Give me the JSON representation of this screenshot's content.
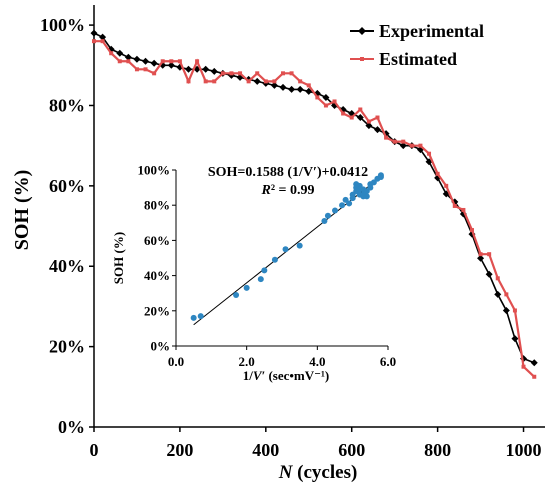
{
  "chart_data": [
    {
      "type": "line",
      "xlabel_italic": "N",
      "xlabel_rest": " (cycles)",
      "ylabel": "SOH (%)",
      "xlim": [
        0,
        1050
      ],
      "ylim": [
        0,
        105
      ],
      "x_ticks": [
        0,
        200,
        400,
        600,
        800,
        1000
      ],
      "x_tick_labels": [
        "0",
        "200",
        "400",
        "600",
        "800",
        "1000"
      ],
      "y_ticks": [
        0,
        20,
        40,
        60,
        80,
        100
      ],
      "y_tick_labels": [
        "0%",
        "20%",
        "40%",
        "60%",
        "80%",
        "100%"
      ],
      "legend_position": "top-right",
      "series": [
        {
          "name": "Experimental",
          "color": "#000000",
          "marker": "diamond",
          "x": [
            0,
            20,
            40,
            60,
            80,
            100,
            120,
            140,
            160,
            180,
            200,
            220,
            240,
            260,
            280,
            300,
            320,
            340,
            360,
            380,
            400,
            420,
            440,
            460,
            480,
            500,
            520,
            540,
            560,
            580,
            600,
            620,
            640,
            660,
            680,
            700,
            720,
            740,
            760,
            780,
            800,
            820,
            840,
            860,
            880,
            900,
            920,
            940,
            960,
            980,
            1000,
            1025
          ],
          "y": [
            98,
            97,
            94,
            93,
            92,
            91.5,
            91,
            90.5,
            90,
            90,
            89.5,
            89,
            89,
            89,
            88.5,
            88,
            87.5,
            87,
            86.5,
            86,
            85.5,
            85,
            84.5,
            84,
            84,
            83.5,
            83,
            82,
            80,
            79,
            78,
            77,
            75,
            74,
            73,
            71,
            70,
            70,
            69,
            66,
            62,
            58,
            56,
            53,
            48,
            42,
            38,
            33,
            29,
            22,
            17,
            16
          ]
        },
        {
          "name": "Estimated",
          "color": "#e05050",
          "marker": "square",
          "x": [
            0,
            20,
            40,
            60,
            80,
            100,
            120,
            140,
            160,
            180,
            200,
            220,
            240,
            260,
            280,
            300,
            320,
            340,
            360,
            380,
            400,
            420,
            440,
            460,
            480,
            500,
            520,
            540,
            560,
            580,
            600,
            620,
            640,
            660,
            680,
            700,
            720,
            740,
            760,
            780,
            800,
            820,
            840,
            860,
            880,
            900,
            920,
            940,
            960,
            980,
            1000,
            1025
          ],
          "y": [
            96,
            96,
            93,
            91,
            91,
            89,
            89,
            88,
            91,
            91,
            91,
            86,
            91,
            86,
            86,
            88,
            88,
            88,
            86,
            88,
            86,
            86,
            88,
            88,
            86,
            85,
            82,
            80,
            81,
            78,
            77,
            79,
            76,
            77,
            72,
            71,
            71,
            70,
            70,
            68,
            63,
            60,
            55,
            54,
            49,
            43,
            43,
            37,
            33,
            29,
            15,
            12.5
          ]
        }
      ]
    },
    {
      "type": "scatter",
      "title": "SOH=0.1588 (1/V′)+0.0412",
      "annotation_italic": "R",
      "annotation_rest": "² = 0.99",
      "xlabel_lead": "1/",
      "xlabel_italic": "V′",
      "xlabel_rest": " (sec•mV⁻¹)",
      "ylabel": "SOH (%)",
      "xlim": [
        0,
        6
      ],
      "ylim": [
        0,
        100
      ],
      "x_ticks": [
        0,
        2,
        4,
        6
      ],
      "x_tick_labels": [
        "0.0",
        "2.0",
        "4.0",
        "6.0"
      ],
      "y_ticks": [
        0,
        20,
        40,
        60,
        80,
        100
      ],
      "y_tick_labels": [
        "0%",
        "20%",
        "40%",
        "60%",
        "80%",
        "100%"
      ],
      "point_color": "#2e86c1",
      "trendline_color": "#000000",
      "trendline": {
        "slope": 15.88,
        "intercept": 4.12,
        "x_range": [
          0.5,
          5.8
        ]
      },
      "points": {
        "x": [
          0.5,
          0.7,
          1.7,
          2.0,
          2.4,
          2.5,
          2.8,
          3.1,
          3.5,
          4.2,
          4.3,
          4.5,
          4.7,
          4.8,
          5.0,
          5.0,
          5.1,
          5.1,
          5.2,
          5.2,
          5.3,
          5.3,
          5.4,
          5.5,
          5.6,
          5.7,
          5.8,
          5.8,
          5.1,
          5.2,
          5.3,
          5.4,
          5.5,
          4.9
        ],
        "y": [
          16,
          17,
          29,
          33,
          38,
          43,
          49,
          55,
          57,
          71,
          74,
          77,
          80,
          83,
          84,
          86,
          88,
          90,
          86,
          91,
          85,
          89,
          88,
          92,
          93,
          95,
          96,
          97,
          92,
          89,
          86,
          85,
          90,
          81
        ]
      }
    }
  ]
}
